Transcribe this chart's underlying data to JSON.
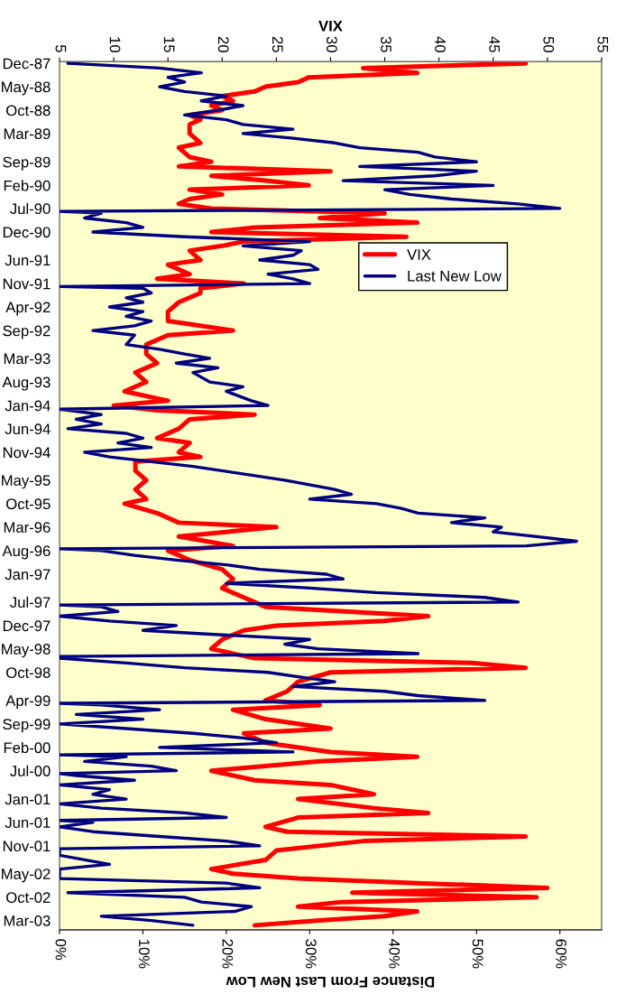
{
  "chart_data": {
    "type": "line",
    "orientation": "horizontal",
    "xlabel": "Distance From Last New Low",
    "x2label": "VIX",
    "xlim": [
      0,
      65
    ],
    "xticks": [
      {
        "value": 0,
        "label": "0%"
      },
      {
        "value": 10,
        "label": "10%"
      },
      {
        "value": 20,
        "label": "20%"
      },
      {
        "value": 30,
        "label": "30%"
      },
      {
        "value": 40,
        "label": "40%"
      },
      {
        "value": 50,
        "label": "50%"
      },
      {
        "value": 60,
        "label": "60%"
      }
    ],
    "x2lim": [
      5,
      55
    ],
    "x2ticks": [
      5,
      10,
      15,
      20,
      25,
      30,
      35,
      40,
      45,
      50,
      55
    ],
    "ylim": [
      "2003-05-01",
      "1987-11-20"
    ],
    "yticks": [
      {
        "value": "1987-12-01",
        "label": "Dec-87"
      },
      {
        "value": "1988-05-01",
        "label": "May-88"
      },
      {
        "value": "1988-10-01",
        "label": "Oct-88"
      },
      {
        "value": "1989-03-01",
        "label": "Mar-89"
      },
      {
        "value": "1989-09-01",
        "label": "Sep-89"
      },
      {
        "value": "1990-02-01",
        "label": "Feb-90"
      },
      {
        "value": "1990-07-01",
        "label": "Jul-90"
      },
      {
        "value": "1990-12-01",
        "label": "Dec-90"
      },
      {
        "value": "1991-06-01",
        "label": "Jun-91"
      },
      {
        "value": "1991-11-01",
        "label": "Nov-91"
      },
      {
        "value": "1992-04-01",
        "label": "Apr-92"
      },
      {
        "value": "1992-09-01",
        "label": "Sep-92"
      },
      {
        "value": "1993-03-01",
        "label": "Mar-93"
      },
      {
        "value": "1993-08-01",
        "label": "Aug-93"
      },
      {
        "value": "1994-01-01",
        "label": "Jan-94"
      },
      {
        "value": "1994-06-01",
        "label": "Jun-94"
      },
      {
        "value": "1994-11-01",
        "label": "Nov-94"
      },
      {
        "value": "1995-05-01",
        "label": "May-95"
      },
      {
        "value": "1995-10-01",
        "label": "Oct-95"
      },
      {
        "value": "1996-03-01",
        "label": "Mar-96"
      },
      {
        "value": "1996-08-01",
        "label": "Aug-96"
      },
      {
        "value": "1997-01-01",
        "label": "Jan-97"
      },
      {
        "value": "1997-07-01",
        "label": "Jul-97"
      },
      {
        "value": "1997-12-01",
        "label": "Dec-97"
      },
      {
        "value": "1998-05-01",
        "label": "May-98"
      },
      {
        "value": "1998-10-01",
        "label": "Oct-98"
      },
      {
        "value": "1999-04-01",
        "label": "Apr-99"
      },
      {
        "value": "1999-09-01",
        "label": "Sep-99"
      },
      {
        "value": "2000-02-01",
        "label": "Feb-00"
      },
      {
        "value": "2000-07-01",
        "label": "Jul-00"
      },
      {
        "value": "2001-01-01",
        "label": "Jan-01"
      },
      {
        "value": "2001-06-01",
        "label": "Jun-01"
      },
      {
        "value": "2001-11-01",
        "label": "Nov-01"
      },
      {
        "value": "2002-05-01",
        "label": "May-02"
      },
      {
        "value": "2002-10-01",
        "label": "Oct-02"
      },
      {
        "value": "2003-03-01",
        "label": "Mar-03"
      }
    ],
    "grid": false,
    "legend": "right",
    "marker": "none",
    "line_style": "solid",
    "series": [
      {
        "name": "VIX",
        "color": "#ff0000",
        "axis": "x2",
        "x": [
          "1987-12",
          "1988-01",
          "1988-02",
          "1988-03",
          "1988-04",
          "1988-05",
          "1988-06",
          "1988-07",
          "1988-08",
          "1988-09",
          "1988-10",
          "1988-11",
          "1988-12",
          "1989-01",
          "1989-03",
          "1989-05",
          "1989-06",
          "1989-08",
          "1989-09",
          "1989-10",
          "1989-11",
          "1989-12",
          "1990-01",
          "1990-02",
          "1990-03",
          "1990-04",
          "1990-05",
          "1990-06",
          "1990-07",
          "1990-08",
          "1990-09",
          "1990-10",
          "1990-11",
          "1990-12",
          "1991-01",
          "1991-02",
          "1991-03",
          "1991-04",
          "1991-06",
          "1991-07",
          "1991-09",
          "1991-10",
          "1991-11",
          "1991-12",
          "1992-01",
          "1992-03",
          "1992-05",
          "1992-07",
          "1992-09",
          "1992-10",
          "1992-12",
          "1993-02",
          "1993-04",
          "1993-06",
          "1993-08",
          "1993-10",
          "1993-12",
          "1994-01",
          "1994-02",
          "1994-03",
          "1994-04",
          "1994-06",
          "1994-08",
          "1994-09",
          "1994-11",
          "1994-12",
          "1995-01",
          "1995-03",
          "1995-05",
          "1995-07",
          "1995-09",
          "1995-10",
          "1995-12",
          "1996-02",
          "1996-03",
          "1996-05",
          "1996-07",
          "1996-08",
          "1996-10",
          "1996-12",
          "1997-02",
          "1997-04",
          "1997-06",
          "1997-08",
          "1997-10",
          "1997-11",
          "1997-12",
          "1998-01",
          "1998-03",
          "1998-05",
          "1998-07",
          "1998-08",
          "1998-09",
          "1998-10",
          "1998-12",
          "1999-02",
          "1999-04",
          "1999-05",
          "1999-06",
          "1999-08",
          "1999-10",
          "1999-11",
          "2000-01",
          "2000-03",
          "2000-04",
          "2000-05",
          "2000-07",
          "2000-09",
          "2000-10",
          "2000-12",
          "2001-01",
          "2001-03",
          "2001-04",
          "2001-05",
          "2001-07",
          "2001-08",
          "2001-09",
          "2001-10",
          "2001-12",
          "2002-02",
          "2002-04",
          "2002-05",
          "2002-06",
          "2002-07",
          "2002-08",
          "2002-09",
          "2002-10",
          "2002-11",
          "2002-12",
          "2003-01",
          "2003-02",
          "2003-03",
          "2003-04"
        ],
        "values": [
          48,
          33,
          38,
          28,
          27,
          24,
          23,
          20,
          21,
          19,
          20,
          17,
          18,
          17,
          17,
          18,
          16,
          17,
          19,
          16,
          30,
          19,
          24,
          28,
          17,
          20,
          17,
          16,
          19,
          35,
          29,
          38,
          23,
          19,
          37,
          22,
          20,
          17,
          18,
          15,
          17,
          14,
          22,
          18,
          18,
          16,
          15,
          15,
          21,
          15,
          13,
          13,
          14,
          12,
          13,
          11,
          15,
          10,
          14,
          23,
          17,
          16,
          14,
          17,
          16,
          18,
          12,
          12,
          13,
          12,
          13,
          11,
          14,
          16,
          25,
          16,
          21,
          15,
          17,
          20,
          21,
          20,
          22,
          24,
          39,
          35,
          25,
          22,
          20,
          19,
          23,
          43,
          48,
          30,
          27,
          26,
          24,
          29,
          21,
          24,
          30,
          22,
          24,
          30,
          38,
          29,
          19,
          23,
          30,
          34,
          27,
          34,
          39,
          27,
          24,
          26,
          48,
          33,
          25,
          24,
          19,
          21,
          27,
          38,
          50,
          32,
          49,
          31,
          27,
          38,
          35,
          29,
          23
        ]
      },
      {
        "name": "Last New Low",
        "color": "#000080",
        "x": [
          "1987-12",
          "1988-01",
          "1988-02",
          "1988-03",
          "1988-04",
          "1988-05",
          "1988-06",
          "1988-07",
          "1988-08",
          "1988-09",
          "1988-10",
          "1988-11",
          "1988-12",
          "1989-01",
          "1989-02",
          "1989-03",
          "1989-04",
          "1989-05",
          "1989-06",
          "1989-07",
          "1989-08",
          "1989-09",
          "1989-10",
          "1989-11",
          "1989-12",
          "1990-01",
          "1990-02",
          "1990-03",
          "1990-04",
          "1990-05",
          "1990-06",
          "1990-07",
          "1990-07-20",
          "1990-08",
          "1990-09",
          "1990-10",
          "1990-11",
          "1990-12",
          "1991-01",
          "1991-02",
          "1991-03",
          "1991-04",
          "1991-05",
          "1991-06",
          "1991-07",
          "1991-08",
          "1991-09",
          "1991-10",
          "1991-11",
          "1991-11-20",
          "1991-12",
          "1992-01",
          "1992-02",
          "1992-03",
          "1992-04",
          "1992-05",
          "1992-06",
          "1992-07",
          "1992-08",
          "1992-09",
          "1992-10",
          "1992-12",
          "1993-01",
          "1993-02",
          "1993-03",
          "1993-04",
          "1993-05",
          "1993-06",
          "1993-08",
          "1993-09",
          "1993-10",
          "1993-12",
          "1994-01",
          "1994-01-25",
          "1994-03",
          "1994-04",
          "1994-05",
          "1994-06",
          "1994-07",
          "1994-08",
          "1994-09",
          "1994-10",
          "1994-11",
          "1994-12",
          "1995-02",
          "1995-05",
          "1995-07",
          "1995-08",
          "1995-09",
          "1995-10",
          "1995-11",
          "1995-12",
          "1996-01",
          "1996-02",
          "1996-03",
          "1996-04",
          "1996-05",
          "1996-06",
          "1996-07",
          "1996-07-20",
          "1996-08",
          "1996-09",
          "1996-10",
          "1996-11",
          "1996-12",
          "1997-01",
          "1997-02",
          "1997-03",
          "1997-04",
          "1997-05",
          "1997-06",
          "1997-07",
          "1997-07-20",
          "1997-08",
          "1997-09",
          "1997-10",
          "1997-11",
          "1997-12",
          "1998-01",
          "1998-02",
          "1998-03",
          "1998-04",
          "1998-05",
          "1998-06",
          "1998-06-20",
          "1998-07",
          "1998-08",
          "1998-09",
          "1998-10",
          "1998-11",
          "1998-12",
          "1999-01",
          "1999-02",
          "1999-03",
          "1999-04",
          "1999-04-20",
          "1999-05",
          "1999-06",
          "1999-07",
          "1999-08",
          "1999-09",
          "1999-10",
          "1999-11",
          "1999-12",
          "2000-01",
          "2000-02",
          "2000-03",
          "2000-03-20",
          "2000-04",
          "2000-05",
          "2000-06",
          "2000-07",
          "2000-07-20",
          "2000-08",
          "2000-09",
          "2000-10",
          "2000-11",
          "2000-12",
          "2001-01",
          "2001-02",
          "2001-03",
          "2001-04",
          "2001-05",
          "2001-05-20",
          "2001-06",
          "2001-07",
          "2001-08",
          "2001-09",
          "2001-10",
          "2001-11",
          "2001-11-20",
          "2002-01",
          "2002-03",
          "2002-04",
          "2002-06",
          "2002-07",
          "2002-08",
          "2002-09",
          "2002-10",
          "2002-11",
          "2002-12",
          "2003-01",
          "2003-02",
          "2003-03",
          "2003-04"
        ],
        "values": [
          1,
          12,
          17,
          13,
          15,
          12,
          15,
          20,
          17,
          22,
          19,
          15,
          20,
          22,
          28,
          22,
          28,
          33,
          36,
          43,
          45,
          50,
          36,
          50,
          45,
          34,
          52,
          39,
          42,
          47,
          55,
          60,
          0,
          5,
          3,
          8,
          10,
          4,
          15,
          30,
          22,
          29,
          28,
          24,
          30,
          31,
          25,
          28,
          30,
          0,
          10,
          11,
          8,
          10,
          6,
          10,
          8,
          11,
          9,
          4,
          9,
          8,
          12,
          15,
          18,
          14,
          19,
          16,
          18,
          22,
          20,
          23,
          25,
          0,
          5,
          2,
          5,
          1,
          8,
          10,
          7,
          11,
          3,
          6,
          16,
          27,
          33,
          35,
          30,
          38,
          41,
          43,
          51,
          47,
          53,
          52,
          57,
          62,
          56,
          0,
          5,
          9,
          14,
          20,
          24,
          32,
          34,
          20,
          30,
          38,
          51,
          55,
          0,
          5,
          7,
          0,
          6,
          14,
          10,
          20,
          30,
          27,
          31,
          43,
          0,
          0,
          8,
          15,
          25,
          29,
          33,
          28,
          39,
          43,
          51,
          0,
          5,
          12,
          2,
          10,
          0,
          8,
          16,
          22,
          26,
          12,
          28,
          0,
          8,
          3,
          11,
          14,
          0,
          2,
          9,
          0,
          6,
          4,
          8,
          0,
          5,
          15,
          20,
          0,
          4,
          0,
          4,
          12,
          20,
          24,
          0,
          0,
          6,
          0,
          0,
          20,
          24,
          1,
          15,
          17,
          23,
          21,
          5,
          11,
          16
        ]
      }
    ]
  }
}
